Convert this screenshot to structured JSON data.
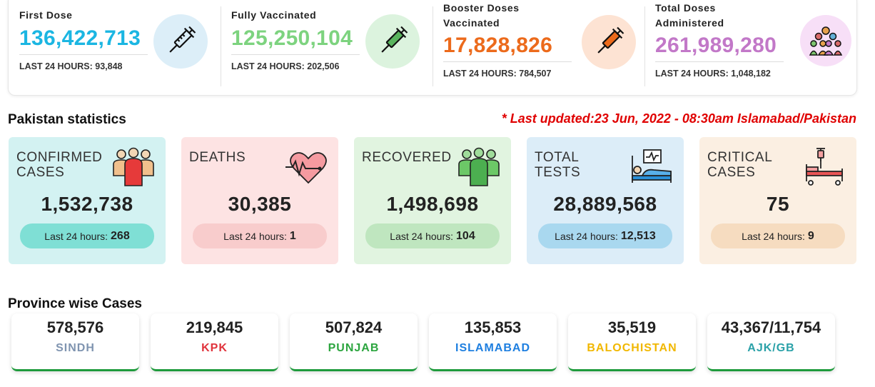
{
  "vaccination": [
    {
      "title_lines": [
        "First Dose"
      ],
      "value": "136,422,713",
      "last24": "LAST 24 HOURS: 93,848",
      "color": "#1bb6e2",
      "icon": "syringe-icon",
      "icon_bg": "#dceef8"
    },
    {
      "title_lines": [
        "Fully Vaccinated"
      ],
      "value": "125,250,104",
      "last24": "LAST 24 HOURS: 202,506",
      "color": "#7dd37f",
      "icon": "syringe-icon",
      "icon_bg": "#dcf3de"
    },
    {
      "title_lines": [
        "Booster Doses",
        "Vaccinated"
      ],
      "value": "17,828,826",
      "last24": "LAST 24 HOURS: 784,507",
      "color": "#ec6a1b",
      "icon": "syringe-icon",
      "icon_bg": "#fde3d3"
    },
    {
      "title_lines": [
        "Total Doses",
        "Administered"
      ],
      "value": "261,989,280",
      "last24": "LAST 24 HOURS: 1,048,182",
      "color": "#c278c8",
      "icon": "crowd-icon",
      "icon_bg": "#f7dff7"
    }
  ],
  "stats_title": "Pakistan statistics",
  "last_updated": "* Last updated:23 Jun, 2022 - 08:30am Islamabad/Pakistan",
  "stats": [
    {
      "label_lines": [
        "CONFIRMED",
        "CASES"
      ],
      "value": "1,532,738",
      "last24_label": "Last 24 hours:",
      "last24_value": "268",
      "bg": "#d3f2f2",
      "pill": "#7fdfd5",
      "icon": "people-icon"
    },
    {
      "label_lines": [
        "DEATHS"
      ],
      "value": "30,385",
      "last24_label": "Last 24 hours:",
      "last24_value": "1",
      "bg": "#fde3e3",
      "pill": "#f8cccc",
      "icon": "heartbeat-icon"
    },
    {
      "label_lines": [
        "RECOVERED"
      ],
      "value": "1,498,698",
      "last24_label": "Last 24 hours:",
      "last24_value": "104",
      "bg": "#e1f4e0",
      "pill": "#bfe6bf",
      "icon": "recovered-people-icon"
    },
    {
      "label_lines": [
        "TOTAL",
        "TESTS"
      ],
      "value": "28,889,568",
      "last24_label": "Last 24 hours:",
      "last24_value": "12,513",
      "bg": "#dcedf8",
      "pill": "#a9d8ef",
      "icon": "hospital-bed-icon"
    },
    {
      "label_lines": [
        "CRITICAL",
        "CASES"
      ],
      "value": "75",
      "last24_label": "Last 24 hours:",
      "last24_value": "9",
      "bg": "#fbefe2",
      "pill": "#f6dcc0",
      "icon": "iv-bed-icon"
    }
  ],
  "province_title": "Province wise Cases",
  "provinces": [
    {
      "value": "578,576",
      "name": "SINDH",
      "color": "#7f94b0"
    },
    {
      "value": "219,845",
      "name": "KPK",
      "color": "#e0333c"
    },
    {
      "value": "507,824",
      "name": "PUNJAB",
      "color": "#2ca53f"
    },
    {
      "value": "135,853",
      "name": "ISLAMABAD",
      "color": "#1e7fe0"
    },
    {
      "value": "35,519",
      "name": "BALOCHISTAN",
      "color": "#f1b700"
    },
    {
      "value": "43,367/11,754",
      "name": "AJK/GB",
      "color": "#2aa1a8"
    }
  ]
}
